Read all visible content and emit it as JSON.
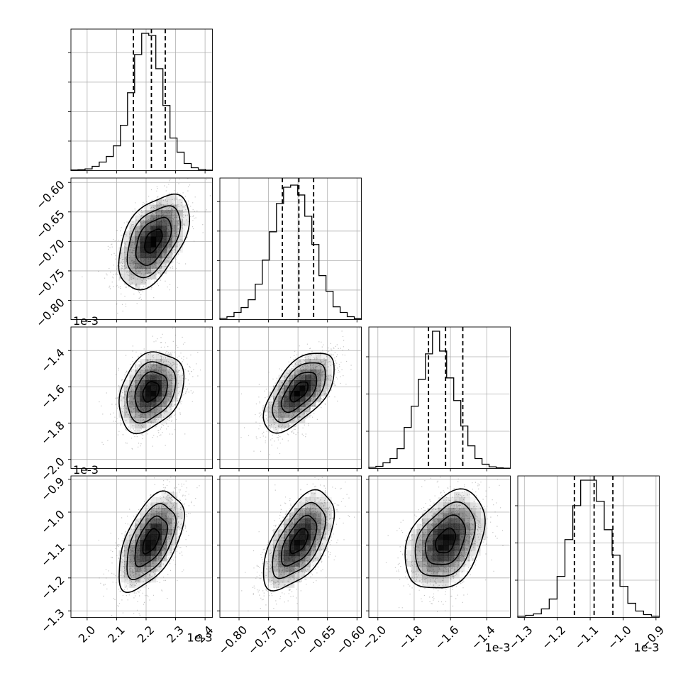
{
  "chart_data": {
    "type": "corner",
    "offset_label": "1e-3",
    "grid": true,
    "parameters": [
      {
        "range": [
          1.945,
          2.425
        ],
        "ticks": [
          2.0,
          2.1,
          2.2,
          2.3,
          2.4
        ],
        "tick_labels": [
          "2.0",
          "2.1",
          "2.2",
          "2.3",
          "2.4"
        ],
        "quantiles": [
          2.157,
          2.218,
          2.265
        ],
        "hist_y_ticks": 4,
        "hist": [
          0.004,
          0.006,
          0.012,
          0.03,
          0.06,
          0.1,
          0.175,
          0.32,
          0.55,
          0.82,
          0.97,
          0.955,
          0.72,
          0.46,
          0.23,
          0.13,
          0.05,
          0.02,
          0.008,
          0.003
        ]
      },
      {
        "range": [
          -0.8325,
          -0.5925
        ],
        "ticks": [
          -0.8,
          -0.75,
          -0.7,
          -0.65,
          -0.6
        ],
        "tick_labels": [
          "−0.80",
          "−0.75",
          "−0.70",
          "−0.65",
          "−0.60"
        ],
        "quantiles": [
          -0.7265,
          -0.6985,
          -0.6735
        ],
        "hist_y_ticks": 4,
        "hist": [
          0.008,
          0.02,
          0.05,
          0.085,
          0.14,
          0.25,
          0.42,
          0.62,
          0.82,
          0.935,
          0.95,
          0.88,
          0.73,
          0.53,
          0.31,
          0.2,
          0.09,
          0.05,
          0.02,
          0.006
        ]
      },
      {
        "range": [
          -2.05,
          -1.27
        ],
        "ticks": [
          -2.0,
          -1.8,
          -1.6,
          -1.4
        ],
        "tick_labels": [
          "−2.0",
          "−1.8",
          "−1.6",
          "−1.4"
        ],
        "quantiles": [
          -1.721,
          -1.627,
          -1.532
        ],
        "hist_y_ticks": 3,
        "hist": [
          0.008,
          0.015,
          0.04,
          0.07,
          0.14,
          0.29,
          0.44,
          0.63,
          0.81,
          0.97,
          0.83,
          0.64,
          0.48,
          0.3,
          0.16,
          0.07,
          0.03,
          0.012,
          0.004,
          0.002
        ]
      },
      {
        "range": [
          -1.32,
          -0.89
        ],
        "ticks": [
          -1.3,
          -1.2,
          -1.1,
          -1.0,
          -0.9
        ],
        "tick_labels": [
          "−1.3",
          "−1.2",
          "−1.1",
          "−1.0",
          "−0.9"
        ],
        "quantiles": [
          -1.148,
          -1.088,
          -1.031
        ],
        "hist_y_ticks": 3,
        "hist": [
          0.008,
          0.015,
          0.025,
          0.06,
          0.13,
          0.29,
          0.55,
          0.79,
          0.97,
          0.97,
          0.82,
          0.62,
          0.44,
          0.22,
          0.1,
          0.045,
          0.02,
          0.008
        ]
      }
    ],
    "pairs": [
      {
        "x": 0,
        "y": 1,
        "mean": [
          2.224,
          -0.699
        ],
        "sd": [
          0.06,
          0.04
        ],
        "corr": 0.48
      },
      {
        "x": 0,
        "y": 2,
        "mean": [
          2.216,
          -1.626
        ],
        "sd": [
          0.055,
          0.11
        ],
        "corr": 0.3
      },
      {
        "x": 1,
        "y": 2,
        "mean": [
          -0.698,
          -1.626
        ],
        "sd": [
          0.03,
          0.11
        ],
        "corr": 0.6
      },
      {
        "x": 0,
        "y": 3,
        "mean": [
          2.216,
          -1.088
        ],
        "sd": [
          0.055,
          0.075
        ],
        "corr": 0.55
      },
      {
        "x": 1,
        "y": 3,
        "mean": [
          -0.698,
          -1.088
        ],
        "sd": [
          0.03,
          0.075
        ],
        "corr": 0.58
      },
      {
        "x": 2,
        "y": 3,
        "mean": [
          -1.626,
          -1.088
        ],
        "sd": [
          0.11,
          0.075
        ],
        "corr": 0.35
      }
    ],
    "colors": {
      "line": "#000000",
      "grid": "#b0b0b0",
      "points": "#8c8c8c",
      "density": "#000000"
    }
  }
}
